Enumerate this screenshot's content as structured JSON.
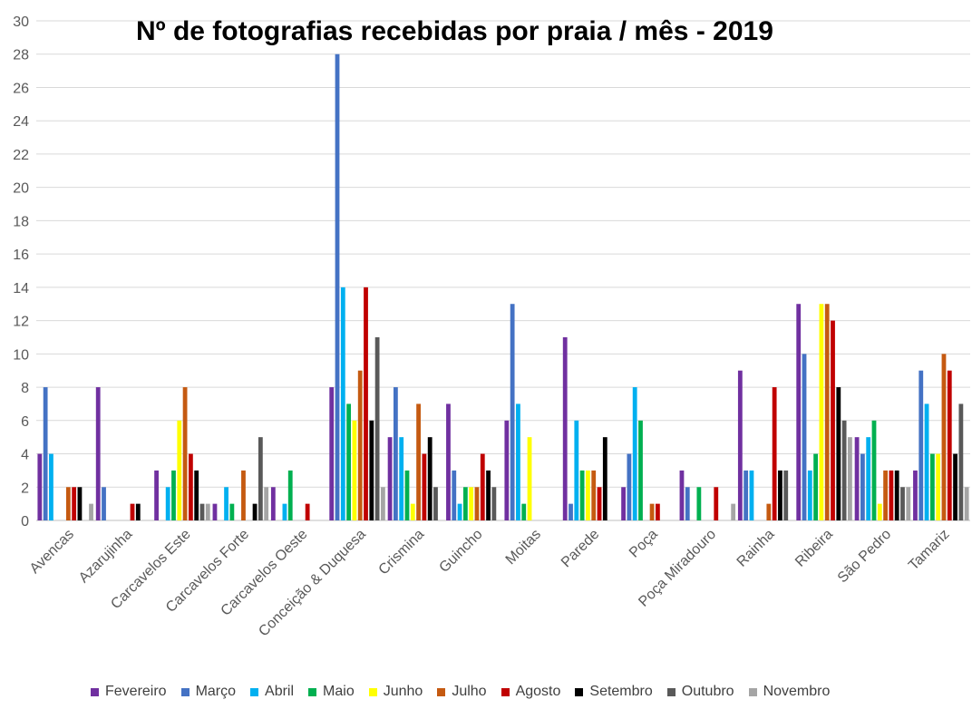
{
  "chart_data": {
    "type": "bar",
    "title": "Nº de fotografias recebidas por praia / mês - 2019",
    "xlabel": "",
    "ylabel": "",
    "ylim": [
      0,
      30
    ],
    "yticks": [
      0,
      2,
      4,
      6,
      8,
      10,
      12,
      14,
      16,
      18,
      20,
      22,
      24,
      26,
      28,
      30
    ],
    "grid": true,
    "legend_position": "bottom",
    "categories": [
      "Avencas",
      "Azarujinha",
      "Carcavelos Este",
      "Carcavelos Forte",
      "Carcavelos Oeste",
      "Conceição & Duquesa",
      "Crismina",
      "Guincho",
      "Moitas",
      "Parede",
      "Poça",
      "Poça Miradouro",
      "Rainha",
      "Ribeira",
      "São Pedro",
      "Tamariz"
    ],
    "series": [
      {
        "name": "Fevereiro",
        "color": "#7030a0",
        "values": [
          4,
          8,
          3,
          1,
          2,
          8,
          5,
          7,
          6,
          11,
          2,
          3,
          9,
          13,
          5,
          3
        ]
      },
      {
        "name": "Março",
        "color": "#4472c4",
        "values": [
          8,
          2,
          0,
          0,
          0,
          28,
          8,
          3,
          13,
          1,
          4,
          2,
          3,
          10,
          4,
          9
        ]
      },
      {
        "name": "Abril",
        "color": "#00b0f0",
        "values": [
          4,
          0,
          2,
          2,
          1,
          14,
          5,
          1,
          7,
          6,
          8,
          0,
          3,
          3,
          5,
          7
        ]
      },
      {
        "name": "Maio",
        "color": "#00b050",
        "values": [
          0,
          0,
          3,
          1,
          3,
          7,
          3,
          2,
          1,
          3,
          6,
          2,
          0,
          4,
          6,
          4
        ]
      },
      {
        "name": "Junho",
        "color": "#ffff00",
        "values": [
          0,
          0,
          6,
          0,
          0,
          6,
          1,
          2,
          5,
          3,
          0,
          0,
          0,
          13,
          1,
          4
        ]
      },
      {
        "name": "Julho",
        "color": "#c55a11",
        "values": [
          2,
          0,
          8,
          3,
          0,
          9,
          7,
          2,
          0,
          3,
          1,
          0,
          1,
          13,
          3,
          10
        ]
      },
      {
        "name": "Agosto",
        "color": "#c00000",
        "values": [
          2,
          1,
          4,
          0,
          1,
          14,
          4,
          4,
          0,
          2,
          1,
          2,
          8,
          12,
          3,
          9
        ]
      },
      {
        "name": "Setembro",
        "color": "#000000",
        "values": [
          2,
          1,
          3,
          1,
          0,
          6,
          5,
          3,
          0,
          5,
          0,
          0,
          3,
          8,
          3,
          4
        ]
      },
      {
        "name": "Outubro",
        "color": "#595959",
        "values": [
          0,
          0,
          1,
          5,
          0,
          11,
          2,
          2,
          0,
          0,
          0,
          0,
          3,
          6,
          2,
          7
        ]
      },
      {
        "name": "Novembro",
        "color": "#a5a5a5",
        "values": [
          1,
          0,
          1,
          2,
          0,
          2,
          0,
          0,
          0,
          0,
          0,
          1,
          0,
          5,
          2,
          2
        ]
      }
    ]
  }
}
